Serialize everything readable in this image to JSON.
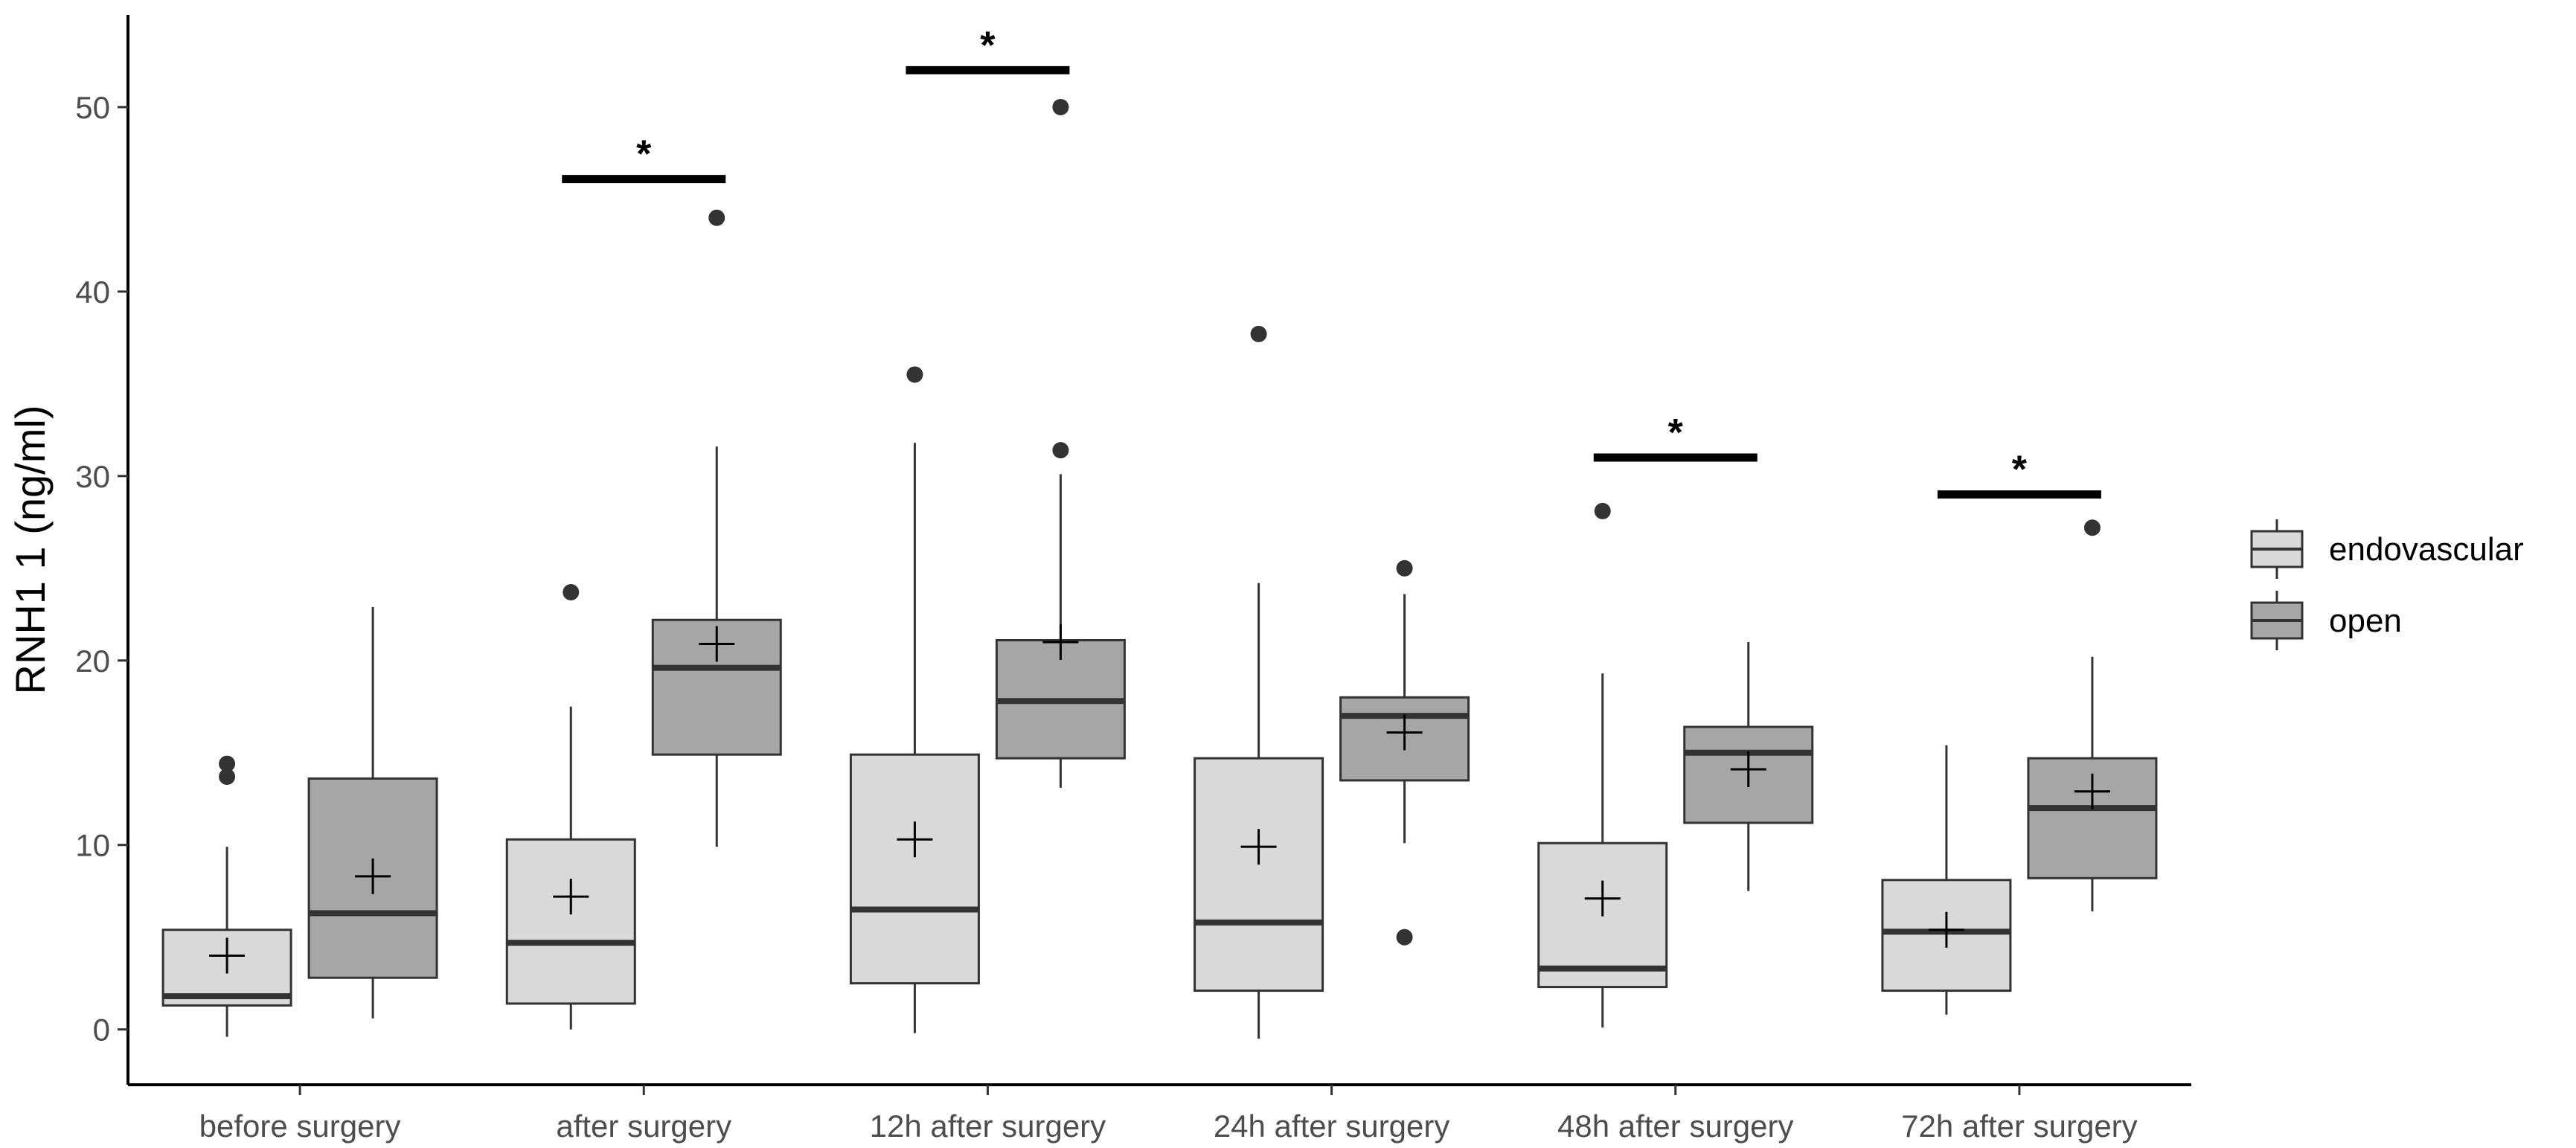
{
  "chart_data": {
    "type": "box",
    "title": "",
    "xlabel": "",
    "ylabel": "RNH1 1 (ng/ml)",
    "ylim": [
      -3,
      55
    ],
    "yticks": [
      0,
      10,
      20,
      30,
      40,
      50
    ],
    "grid": false,
    "legend_position": "right",
    "categories": [
      "before surgery",
      "after surgery",
      "12h after surgery",
      "24h after surgery",
      "48h after surgery",
      "72h after surgery"
    ],
    "series": [
      {
        "name": "endovascular",
        "color": "#d9d9d9",
        "boxes": [
          {
            "whisker_low": -0.4,
            "q1": 1.3,
            "median": 1.8,
            "q3": 5.4,
            "whisker_high": 9.9,
            "mean": 4.0,
            "outliers": [
              13.7,
              14.4
            ]
          },
          {
            "whisker_low": 0.0,
            "q1": 1.4,
            "median": 4.7,
            "q3": 10.3,
            "whisker_high": 17.5,
            "mean": 7.2,
            "outliers": [
              23.7
            ]
          },
          {
            "whisker_low": -0.2,
            "q1": 2.5,
            "median": 6.5,
            "q3": 14.9,
            "whisker_high": 31.8,
            "mean": 10.3,
            "outliers": [
              35.5
            ]
          },
          {
            "whisker_low": -0.5,
            "q1": 2.1,
            "median": 5.8,
            "q3": 14.7,
            "whisker_high": 24.2,
            "mean": 9.9,
            "outliers": [
              37.7
            ]
          },
          {
            "whisker_low": 0.1,
            "q1": 2.3,
            "median": 3.3,
            "q3": 10.1,
            "whisker_high": 19.3,
            "mean": 7.1,
            "outliers": [
              28.1
            ]
          },
          {
            "whisker_low": 0.8,
            "q1": 2.1,
            "median": 5.3,
            "q3": 8.1,
            "whisker_high": 15.4,
            "mean": 5.4,
            "outliers": []
          }
        ]
      },
      {
        "name": "open",
        "color": "#a6a6a6",
        "boxes": [
          {
            "whisker_low": 0.6,
            "q1": 2.8,
            "median": 6.3,
            "q3": 13.6,
            "whisker_high": 22.9,
            "mean": 8.3,
            "outliers": []
          },
          {
            "whisker_low": 9.9,
            "q1": 14.9,
            "median": 19.6,
            "q3": 22.2,
            "whisker_high": 31.6,
            "mean": 20.9,
            "outliers": [
              44.0
            ]
          },
          {
            "whisker_low": 13.1,
            "q1": 14.7,
            "median": 17.8,
            "q3": 21.1,
            "whisker_high": 30.1,
            "mean": 21.0,
            "outliers": [
              31.4,
              50.0
            ]
          },
          {
            "whisker_low": 10.1,
            "q1": 13.5,
            "median": 17.0,
            "q3": 18.0,
            "whisker_high": 23.6,
            "mean": 16.1,
            "outliers": [
              5.0,
              25.0
            ]
          },
          {
            "whisker_low": 7.5,
            "q1": 11.2,
            "median": 15.0,
            "q3": 16.4,
            "whisker_high": 21.0,
            "mean": 14.1,
            "outliers": []
          },
          {
            "whisker_low": 6.4,
            "q1": 8.2,
            "median": 12.0,
            "q3": 14.7,
            "whisker_high": 20.2,
            "mean": 12.9,
            "outliers": [
              27.2
            ]
          }
        ]
      }
    ],
    "significance": [
      {
        "category": "after surgery",
        "y": 46.1,
        "label": "*"
      },
      {
        "category": "12h after surgery",
        "y": 52.0,
        "label": "*"
      },
      {
        "category": "48h after surgery",
        "y": 31.0,
        "label": "*"
      },
      {
        "category": "72h after surgery",
        "y": 29.0,
        "label": "*"
      }
    ]
  }
}
